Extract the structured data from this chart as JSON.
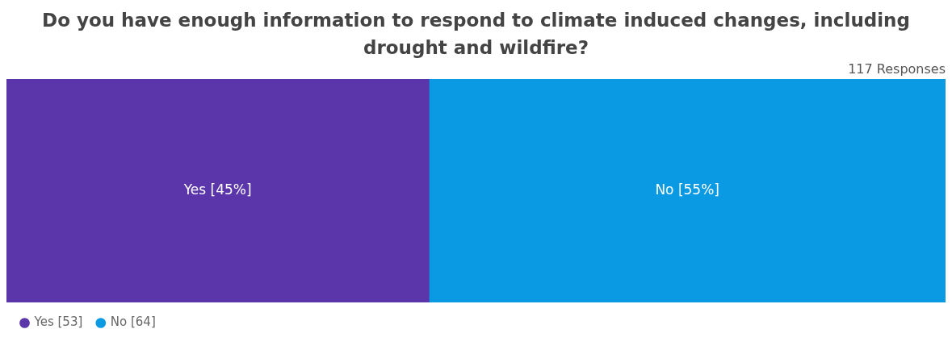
{
  "chart_data": {
    "type": "bar",
    "title": "Do you have enough information to respond to climate induced changes, including drought and wildfire?",
    "annotations": [
      "117 Responses"
    ],
    "orientation": "horizontal",
    "stacked": true,
    "categories": [
      null
    ],
    "xlim": [
      0,
      100
    ],
    "tick_labels": false,
    "grid": false,
    "legend": "bottom left",
    "series": [
      {
        "name": "Yes [53]",
        "color": "#5b35aa",
        "values": [
          45
        ],
        "value_labels": [
          "Yes [45%]"
        ]
      },
      {
        "name": "No [64]",
        "color": "#0a9ae3",
        "values": [
          55
        ],
        "value_labels": [
          "No [55%]"
        ]
      }
    ]
  }
}
